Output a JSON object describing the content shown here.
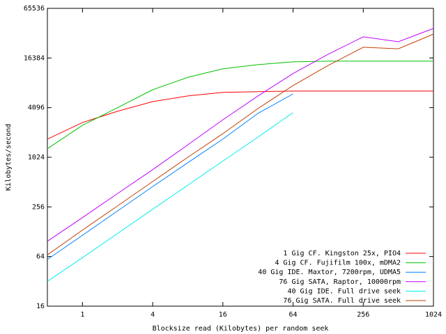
{
  "chart_data": {
    "type": "line",
    "xlabel": "Blocksize read (Kilobytes) per random seek",
    "ylabel": "Kilobytes/second",
    "x": [
      0.5,
      1,
      2,
      4,
      8,
      16,
      32,
      64,
      128,
      256,
      512,
      1024
    ],
    "xscale": "log",
    "yscale": "log",
    "grid": false,
    "legend": "bottom right",
    "xlim": [
      0.5,
      1024
    ],
    "xticks": [
      1,
      4,
      16,
      64,
      256,
      1024
    ],
    "ylim": [
      16,
      65536
    ],
    "yticks": [
      16,
      64,
      256,
      1024,
      4096,
      16384,
      65536
    ],
    "series": [
      {
        "name": "1 Gig CF. Kingston 25x, PIO4",
        "color": "#ff0000",
        "values": [
          1700,
          2700,
          3700,
          4850,
          5670,
          6260,
          6400,
          6500,
          6500,
          6500,
          6500,
          6500
        ]
      },
      {
        "name": "4 Gig CF. Fujifilm 100x, mDMA2",
        "color": "#00c000",
        "values": [
          1300,
          2500,
          4096,
          6750,
          9550,
          12100,
          13600,
          14700,
          15000,
          15000,
          15000,
          15000
        ]
      },
      {
        "name": "40 Gig IDE. Maxtor, 7200rpm, UDMA5",
        "color": "#0080ff",
        "values": [
          59,
          116,
          229,
          452,
          880,
          1700,
          3490,
          6000,
          null,
          null,
          null,
          null
        ]
      },
      {
        "name": "76 Gig SATA, Raptor, 10000rpm",
        "color": "#c000ff",
        "values": [
          98,
          190,
          372,
          725,
          1450,
          2920,
          5670,
          10600,
          18200,
          29600,
          25800,
          37400
        ]
      },
      {
        "name": "40 Gig IDE. Full drive seek",
        "color": "#00eeee",
        "values": [
          32,
          62,
          122,
          240,
          470,
          920,
          1800,
          3560,
          null,
          null,
          null,
          null
        ]
      },
      {
        "name": "76 Gig SATA. Full drive seek",
        "color": "#c04000",
        "values": [
          67,
          134,
          263,
          520,
          1024,
          1980,
          3990,
          7590,
          13300,
          22100,
          21200,
          31900
        ]
      }
    ]
  }
}
